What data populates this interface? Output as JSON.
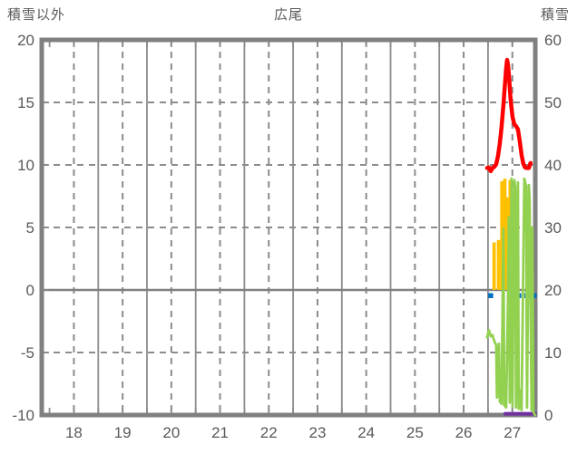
{
  "header": {
    "left_axis_title": "積雪以外",
    "title": "広尾",
    "right_axis_title": "積雪"
  },
  "chart_data": {
    "type": "line",
    "title": "広尾",
    "background": "#FFFFFF",
    "grid_color": "#8C8C8C",
    "border_color": "#808080",
    "text_color": "#595959",
    "x_axis": {
      "min": 17.34,
      "max": 27.47,
      "labels": [
        "18",
        "19",
        "20",
        "21",
        "22",
        "23",
        "24",
        "25",
        "26",
        "27"
      ],
      "label_positions": [
        18,
        19,
        20,
        21,
        22,
        23,
        24,
        25,
        26,
        27
      ],
      "dashed_gridlines": [
        18,
        19,
        20,
        21,
        22,
        23,
        24,
        25,
        26,
        27
      ],
      "solid_gridlines": [
        18.5,
        19.5,
        20.5,
        21.5,
        22.5,
        23.5,
        24.5,
        25.5,
        26.5
      ],
      "tick_positions": [
        17.5,
        18,
        18.5,
        19,
        19.5,
        20,
        20.5,
        21,
        21.5,
        22,
        22.5,
        23,
        23.5,
        24,
        24.5,
        25,
        25.5,
        26,
        26.5,
        27
      ]
    },
    "left_axis": {
      "title": "積雪以外",
      "min": -10,
      "max": 20,
      "tick_values": [
        20,
        15,
        10,
        5,
        0,
        -5,
        -10
      ],
      "tick_labels": [
        "20",
        "15",
        "10",
        "5",
        "0",
        "-5",
        "-10"
      ],
      "dashed_gridlines": [
        15,
        10,
        5,
        -5
      ],
      "zero_line": 0
    },
    "right_axis": {
      "title": "積雪",
      "min": 0,
      "max": 60,
      "tick_values": [
        60,
        50,
        40,
        30,
        20,
        10,
        0
      ],
      "tick_labels": [
        "60",
        "50",
        "40",
        "30",
        "20",
        "10",
        "0"
      ]
    },
    "series": [
      {
        "name": "yellow-bars",
        "type": "bar",
        "axis": "left",
        "color": "#FFC000",
        "bar_width_days": 0.068,
        "points": [
          [
            26.625,
            3.8
          ],
          [
            26.716,
            4.0
          ],
          [
            26.785,
            8.7
          ],
          [
            26.846,
            8.9
          ],
          [
            26.906,
            7.4
          ],
          [
            26.954,
            8.8
          ],
          [
            27.005,
            4.8
          ],
          [
            27.046,
            2.0
          ],
          [
            27.096,
            1.5
          ]
        ]
      },
      {
        "name": "purple-line",
        "type": "line",
        "axis": "right",
        "color": "#7030A0",
        "stroke_width": 4,
        "points": [
          [
            26.853,
            0.2
          ],
          [
            27.467,
            0.2
          ]
        ]
      },
      {
        "name": "blue-markers",
        "type": "square",
        "axis": "left",
        "color": "#0070C0",
        "size": 5.5,
        "points": [
          [
            26.555,
            -0.45
          ],
          [
            27.002,
            -0.45
          ],
          [
            27.132,
            -0.45
          ],
          [
            27.3,
            -0.45
          ],
          [
            27.448,
            -0.45
          ]
        ]
      },
      {
        "name": "green-line",
        "type": "line",
        "axis": "left",
        "color": "#92D050",
        "stroke_width": 2.8,
        "points": [
          [
            26.481,
            -3.8
          ],
          [
            26.518,
            -3.2
          ],
          [
            26.555,
            -3.7
          ],
          [
            26.592,
            -3.6
          ],
          [
            26.63,
            -4.1
          ],
          [
            26.667,
            -4.4
          ],
          [
            26.685,
            -8.6
          ],
          [
            26.723,
            -4.3
          ],
          [
            26.741,
            -8.9
          ],
          [
            26.778,
            -9.1
          ],
          [
            26.797,
            -2.0
          ],
          [
            26.816,
            4.9
          ],
          [
            26.834,
            -9.2
          ],
          [
            26.872,
            -9.4
          ],
          [
            26.909,
            -1.0
          ],
          [
            26.927,
            5.8
          ],
          [
            26.946,
            -9.0
          ],
          [
            26.983,
            8.9
          ],
          [
            27.002,
            -9.3
          ],
          [
            27.039,
            8.8
          ],
          [
            27.058,
            8.2
          ],
          [
            27.076,
            -9.4
          ],
          [
            27.114,
            8.6
          ],
          [
            27.132,
            -9.5
          ],
          [
            27.169,
            -8.0
          ],
          [
            27.188,
            -9.6
          ],
          [
            27.225,
            2.0
          ],
          [
            27.244,
            8.9
          ],
          [
            27.281,
            8.3
          ],
          [
            27.3,
            -9.4
          ],
          [
            27.337,
            8.4
          ],
          [
            27.355,
            7.2
          ],
          [
            27.393,
            -9.6
          ],
          [
            27.411,
            5.0
          ],
          [
            27.43,
            -9.7
          ],
          [
            27.448,
            -9.9
          ],
          [
            27.467,
            -10.0
          ]
        ]
      },
      {
        "name": "red-line",
        "type": "line",
        "axis": "right",
        "color": "#FF0000",
        "stroke_width": 4.5,
        "points": [
          [
            26.481,
            39.5
          ],
          [
            26.518,
            39.6
          ],
          [
            26.555,
            39.0
          ],
          [
            26.592,
            39.5
          ],
          [
            26.63,
            39.7
          ],
          [
            26.667,
            40.1
          ],
          [
            26.704,
            41.4
          ],
          [
            26.741,
            43.4
          ],
          [
            26.778,
            46.0
          ],
          [
            26.816,
            49.6
          ],
          [
            26.853,
            53.5
          ],
          [
            26.872,
            55.4
          ],
          [
            26.89,
            56.8
          ],
          [
            26.909,
            56.1
          ],
          [
            26.927,
            54.7
          ],
          [
            26.965,
            50.3
          ],
          [
            27.002,
            47.7
          ],
          [
            27.039,
            46.5
          ],
          [
            27.076,
            46.2
          ],
          [
            27.114,
            45.7
          ],
          [
            27.151,
            43.8
          ],
          [
            27.188,
            41.6
          ],
          [
            27.225,
            40.2
          ],
          [
            27.262,
            39.6
          ],
          [
            27.3,
            39.5
          ],
          [
            27.337,
            39.5
          ],
          [
            27.374,
            40.3
          ]
        ]
      }
    ]
  }
}
